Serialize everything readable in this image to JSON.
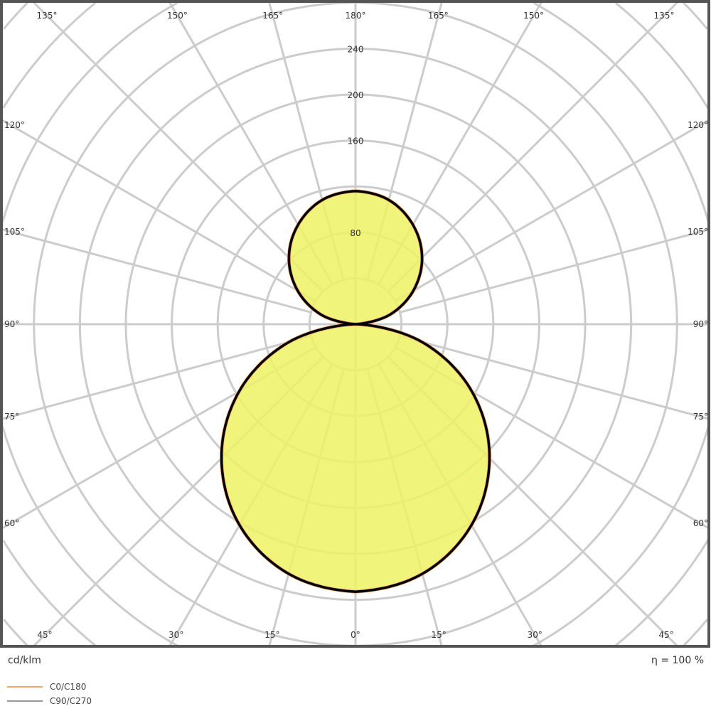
{
  "chart_data": {
    "type": "polar",
    "title": "",
    "unit_label": "cd/klm",
    "efficiency_label": "η = 100 %",
    "radial_ticks": [
      80,
      160,
      200,
      240
    ],
    "radial_grid_step": 40,
    "radial_max": 400,
    "angle_grid_step": 15,
    "angle_tick_labels": [
      "0°",
      "15°",
      "30°",
      "45°",
      "60°",
      "75°",
      "90°",
      "105°",
      "120°",
      "135°",
      "150°",
      "165°",
      "180°"
    ],
    "angles": [
      0,
      15,
      30,
      45,
      60,
      75,
      90,
      105,
      120,
      135,
      150,
      165,
      180
    ],
    "series": [
      {
        "name": "C0/C180",
        "color": "#f5a468",
        "values": [
          233,
          225,
          202,
          165,
          117,
          60,
          0,
          30,
          58,
          82,
          100,
          112,
          116
        ]
      },
      {
        "name": "C90/C270",
        "color": "#999999",
        "values": [
          233,
          225,
          202,
          165,
          117,
          60,
          0,
          30,
          58,
          82,
          100,
          112,
          116
        ]
      }
    ],
    "fill_color": "#eef263",
    "outline_color": "#000000",
    "grid": true,
    "legend_position": "bottom-left"
  }
}
